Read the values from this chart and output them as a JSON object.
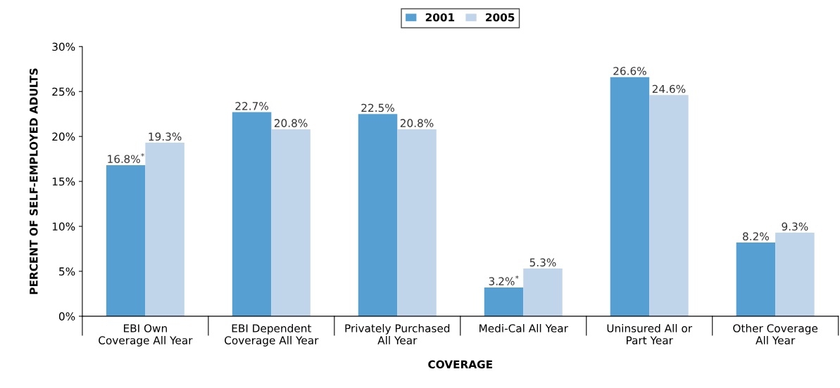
{
  "chart_data": {
    "type": "bar",
    "categories": [
      "EBI Own\nCoverage All Year",
      "EBI Dependent\nCoverage All Year",
      "Privately Purchased\nAll Year",
      "Medi-Cal All Year",
      "Uninsured All or\nPart Year",
      "Other Coverage\nAll Year"
    ],
    "series": [
      {
        "name": "2001",
        "color": "#559fd3",
        "values": [
          16.8,
          22.7,
          22.5,
          3.2,
          26.6,
          8.2
        ],
        "value_labels": [
          "16.8%$^{*}$",
          "22.7%",
          "22.5%",
          "3.2%$^{*}$",
          "26.6%",
          "8.2%"
        ]
      },
      {
        "name": "2005",
        "color": "#c0d4ea",
        "values": [
          19.3,
          20.8,
          20.8,
          5.3,
          24.6,
          9.3
        ],
        "value_labels": [
          "19.3%",
          "20.8%",
          "20.8%",
          "5.3%",
          "24.6%",
          "9.3%"
        ]
      }
    ],
    "xlabel": "COVERAGE",
    "ylabel": "PERCENT OF SELF-EMPLOYED ADULTS",
    "ylim": [
      0,
      30
    ],
    "yticks": [
      {
        "value": 0,
        "label": "0%"
      },
      {
        "value": 5,
        "label": "5%"
      },
      {
        "value": 10,
        "label": "10%"
      },
      {
        "value": 15,
        "label": "15%"
      },
      {
        "value": 20,
        "label": "20%"
      },
      {
        "value": 25,
        "label": "25%"
      },
      {
        "value": 30,
        "label": "30%"
      }
    ],
    "grid": false,
    "legend": "top"
  }
}
